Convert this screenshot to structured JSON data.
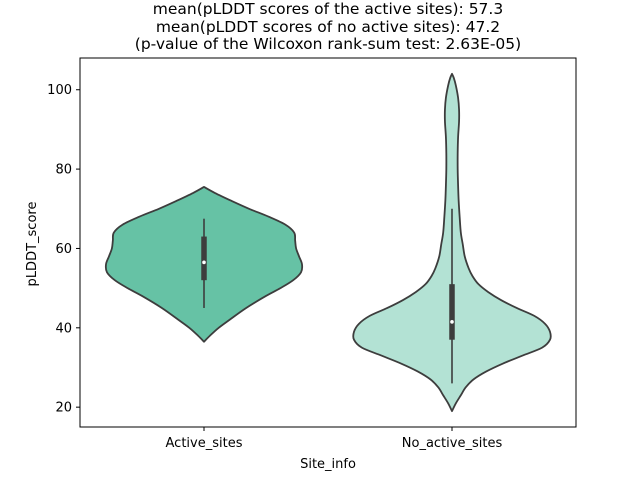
{
  "chart_data": {
    "type": "violin",
    "title_lines": [
      "mean(pLDDT scores of the active sites): 57.3",
      "mean(pLDDT scores of no active sites): 47.2",
      "(p-value of the Wilcoxon rank-sum test: 2.63E-05)"
    ],
    "xlabel": "Site_info",
    "ylabel": "pLDDT_score",
    "ylim": [
      15,
      108
    ],
    "yticks": [
      20,
      40,
      60,
      80,
      100
    ],
    "grid": false,
    "categories": [
      "Active_sites",
      "No_active_sites"
    ],
    "colors": {
      "Active_sites": "#66c2a5",
      "No_active_sites": "#b3e2d4",
      "outline": "#3d3d3d",
      "box": "#3d3d3d",
      "median": "#ffffff"
    },
    "violins": [
      {
        "category": "Active_sites",
        "min": 36.5,
        "max": 75.5,
        "q1": 52,
        "median": 56.5,
        "q3": 63,
        "whisker_low": 45,
        "whisker_high": 67.5,
        "profile": [
          [
            36.5,
            0.0
          ],
          [
            38,
            0.06
          ],
          [
            40,
            0.15
          ],
          [
            42,
            0.26
          ],
          [
            45,
            0.43
          ],
          [
            48,
            0.63
          ],
          [
            50,
            0.78
          ],
          [
            52,
            0.91
          ],
          [
            54,
            0.99
          ],
          [
            56,
            1.0
          ],
          [
            58,
            0.97
          ],
          [
            60,
            0.94
          ],
          [
            62,
            0.93
          ],
          [
            64,
            0.92
          ],
          [
            66,
            0.83
          ],
          [
            68,
            0.66
          ],
          [
            70,
            0.46
          ],
          [
            72,
            0.28
          ],
          [
            74,
            0.11
          ],
          [
            75.5,
            0.0
          ]
        ]
      },
      {
        "category": "No_active_sites",
        "min": 19,
        "max": 104,
        "q1": 37,
        "median": 41.5,
        "q3": 51,
        "whisker_low": 26,
        "whisker_high": 70,
        "profile": [
          [
            19,
            0.0
          ],
          [
            21,
            0.04
          ],
          [
            23,
            0.09
          ],
          [
            25,
            0.14
          ],
          [
            27,
            0.22
          ],
          [
            29,
            0.35
          ],
          [
            31,
            0.52
          ],
          [
            33,
            0.72
          ],
          [
            35,
            0.92
          ],
          [
            37,
            1.0
          ],
          [
            39,
            1.0
          ],
          [
            41,
            0.95
          ],
          [
            43,
            0.84
          ],
          [
            45,
            0.66
          ],
          [
            47,
            0.5
          ],
          [
            49,
            0.37
          ],
          [
            51,
            0.27
          ],
          [
            53,
            0.21
          ],
          [
            55,
            0.17
          ],
          [
            58,
            0.13
          ],
          [
            61,
            0.11
          ],
          [
            64,
            0.09
          ],
          [
            68,
            0.078
          ],
          [
            72,
            0.068
          ],
          [
            76,
            0.062
          ],
          [
            80,
            0.058
          ],
          [
            84,
            0.058
          ],
          [
            88,
            0.062
          ],
          [
            92,
            0.072
          ],
          [
            95,
            0.072
          ],
          [
            98,
            0.062
          ],
          [
            101,
            0.04
          ],
          [
            103,
            0.018
          ],
          [
            104,
            0.0
          ]
        ]
      }
    ]
  }
}
